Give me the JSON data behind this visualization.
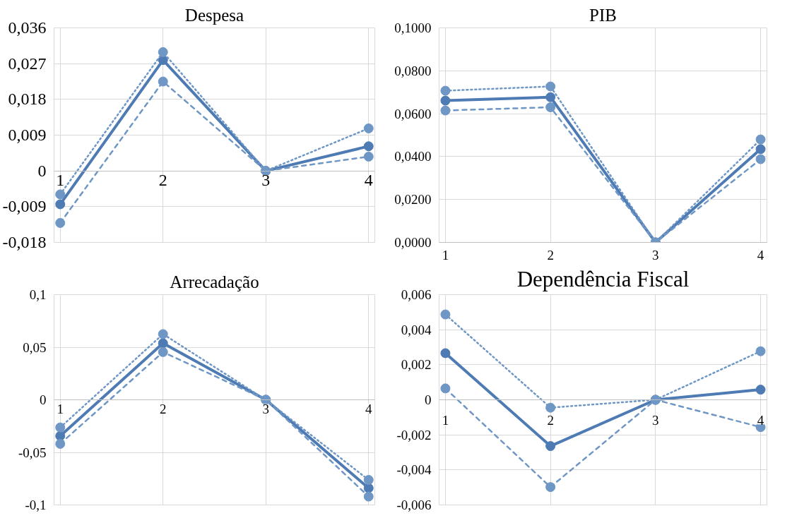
{
  "chart_data": [
    {
      "type": "line",
      "title": "Despesa",
      "categories": [
        "1",
        "2",
        "3",
        "4"
      ],
      "ylim": [
        -0.018,
        0.036
      ],
      "yticks": [
        {
          "value": -0.018,
          "label": "-0,018"
        },
        {
          "value": -0.009,
          "label": "-0,009"
        },
        0,
        {
          "value": 0.009,
          "label": "0,009"
        },
        {
          "value": 0.018,
          "label": "0,018"
        },
        {
          "value": 0.027,
          "label": "0,027"
        },
        {
          "value": 0.036,
          "label": "0,036"
        }
      ],
      "grid": true,
      "marker": "circle",
      "series": [
        {
          "color": "#4e7bb3",
          "line_style": "solid",
          "values": [
            -0.0084,
            0.0279,
            0,
            0.0062
          ]
        },
        {
          "color": "#6f97c6",
          "line_style": "dotted",
          "values": [
            -0.0059,
            0.0299,
            0,
            0.0107
          ]
        },
        {
          "color": "#6f97c6",
          "line_style": "dashed",
          "values": [
            -0.0131,
            0.0225,
            0,
            0.0036
          ]
        }
      ]
    },
    {
      "type": "line",
      "title": "PIB",
      "categories": [
        "1",
        "2",
        "3",
        "4"
      ],
      "ylim": [
        0,
        0.1
      ],
      "yticks": [
        {
          "value": 0,
          "label": "0,0000"
        },
        {
          "value": 0.02,
          "label": "0,0200"
        },
        {
          "value": 0.04,
          "label": "0,0400"
        },
        {
          "value": 0.06,
          "label": "0,0600"
        },
        {
          "value": 0.08,
          "label": "0,0800"
        },
        {
          "value": 0.1,
          "label": "0,1000"
        }
      ],
      "grid": true,
      "marker": "circle",
      "series": [
        {
          "color": "#4e7bb3",
          "line_style": "solid",
          "values": [
            0.0661,
            0.0677,
            0,
            0.0435
          ]
        },
        {
          "color": "#6f97c6",
          "line_style": "dotted",
          "values": [
            0.0707,
            0.0727,
            0,
            0.048
          ]
        },
        {
          "color": "#6f97c6",
          "line_style": "dashed",
          "values": [
            0.0615,
            0.063,
            0,
            0.0388
          ]
        }
      ]
    },
    {
      "type": "line",
      "title": "Arrecadação",
      "categories": [
        "1",
        "2",
        "3",
        "4"
      ],
      "ylim": [
        -0.1,
        0.1
      ],
      "yticks": [
        {
          "value": -0.1,
          "label": "-0,1"
        },
        {
          "value": -0.05,
          "label": "-0,05"
        },
        0,
        {
          "value": 0.05,
          "label": "0,05"
        },
        {
          "value": 0.1,
          "label": "0,1"
        }
      ],
      "grid": true,
      "marker": "circle",
      "series": [
        {
          "color": "#4e7bb3",
          "line_style": "solid",
          "values": [
            -0.0344,
            0.0538,
            0,
            -0.084
          ]
        },
        {
          "color": "#6f97c6",
          "line_style": "dotted",
          "values": [
            -0.0263,
            0.0625,
            0,
            -0.0762
          ]
        },
        {
          "color": "#6f97c6",
          "line_style": "dashed",
          "values": [
            -0.0419,
            0.0454,
            0,
            -0.092
          ]
        }
      ]
    },
    {
      "type": "line",
      "title": "Dependência Fiscal",
      "categories": [
        "1",
        "2",
        "3",
        "4"
      ],
      "ylim": [
        -0.006,
        0.006
      ],
      "yticks": [
        {
          "value": -0.006,
          "label": "-0,006"
        },
        {
          "value": -0.004,
          "label": "-0,004"
        },
        {
          "value": -0.002,
          "label": "-0,002"
        },
        0,
        {
          "value": 0.002,
          "label": "0,002"
        },
        {
          "value": 0.004,
          "label": "0,004"
        },
        {
          "value": 0.006,
          "label": "0,006"
        }
      ],
      "grid": true,
      "marker": "circle",
      "series": [
        {
          "color": "#4e7bb3",
          "line_style": "solid",
          "values": [
            0.00266,
            -0.00264,
            0,
            0.00058
          ]
        },
        {
          "color": "#6f97c6",
          "line_style": "dotted",
          "values": [
            0.00487,
            -0.00045,
            0,
            0.00277
          ]
        },
        {
          "color": "#6f97c6",
          "line_style": "dashed",
          "values": [
            0.00065,
            -0.00498,
            0,
            -0.00156
          ]
        }
      ]
    }
  ]
}
